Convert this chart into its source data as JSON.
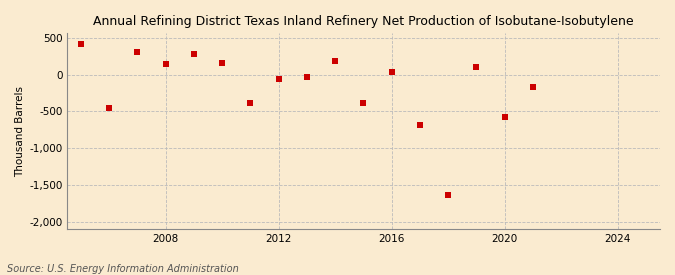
{
  "title": "Annual Refining District Texas Inland Refinery Net Production of Isobutane-Isobutylene",
  "ylabel": "Thousand Barrels",
  "source": "Source: U.S. Energy Information Administration",
  "background_color": "#faebd0",
  "plot_background_color": "#faebd0",
  "marker_color": "#cc0000",
  "grid_color": "#bbbbbb",
  "years": [
    2005,
    2006,
    2007,
    2008,
    2009,
    2010,
    2011,
    2012,
    2013,
    2014,
    2015,
    2016,
    2017,
    2018,
    2019,
    2020,
    2021
  ],
  "values": [
    420,
    -460,
    310,
    150,
    280,
    160,
    -380,
    -65,
    -30,
    185,
    -390,
    30,
    -680,
    -1640,
    100,
    -580,
    -175
  ],
  "xlim": [
    2004.5,
    2025.5
  ],
  "ylim": [
    -2100,
    560
  ],
  "xticks": [
    2008,
    2012,
    2016,
    2020,
    2024
  ],
  "yticks": [
    500,
    0,
    -500,
    -1000,
    -1500,
    -2000
  ],
  "title_fontsize": 9,
  "axis_fontsize": 7.5,
  "source_fontsize": 7,
  "ylabel_fontsize": 7.5
}
